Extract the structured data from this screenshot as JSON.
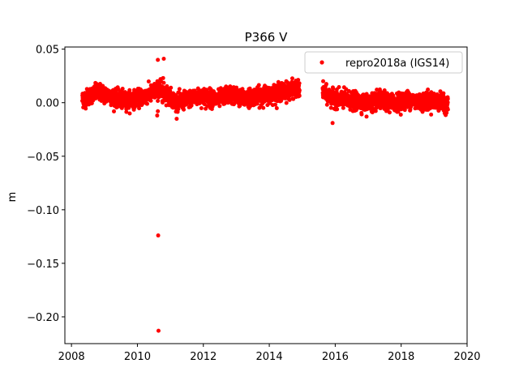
{
  "chart_data": {
    "type": "scatter",
    "title": "P366 V",
    "xlabel": "",
    "ylabel": "m",
    "xlim": [
      2007.8,
      2020.0
    ],
    "ylim": [
      -0.225,
      0.052
    ],
    "xticks": [
      "2008",
      "2010",
      "2012",
      "2014",
      "2016",
      "2018",
      "2020"
    ],
    "xtick_values": [
      2008,
      2010,
      2012,
      2014,
      2016,
      2018,
      2020
    ],
    "yticks": [
      "0.05",
      "0.00",
      "−0.05",
      "−0.10",
      "−0.15",
      "−0.20"
    ],
    "ytick_values": [
      0.05,
      0.0,
      -0.05,
      -0.1,
      -0.15,
      -0.2
    ],
    "legend": {
      "label": "repro2018a (IGS14)",
      "placement": "top-right"
    },
    "grid": false,
    "series": [
      {
        "name": "repro2018a (IGS14)",
        "color": "#ff0000",
        "x_start": 2008.33,
        "x_end": 2019.42,
        "gaps": [
          [
            2014.92,
            2015.62
          ]
        ],
        "trend_points": [
          [
            2008.33,
            0.003
          ],
          [
            2008.8,
            0.01
          ],
          [
            2009.2,
            0.006
          ],
          [
            2009.6,
            0.002
          ],
          [
            2010.0,
            0.004
          ],
          [
            2010.4,
            0.008
          ],
          [
            2010.6,
            0.012
          ],
          [
            2010.9,
            0.008
          ],
          [
            2011.2,
            0.0
          ],
          [
            2011.6,
            0.004
          ],
          [
            2012.0,
            0.006
          ],
          [
            2012.4,
            0.003
          ],
          [
            2012.8,
            0.008
          ],
          [
            2013.2,
            0.004
          ],
          [
            2013.6,
            0.006
          ],
          [
            2014.0,
            0.008
          ],
          [
            2014.4,
            0.01
          ],
          [
            2014.8,
            0.013
          ],
          [
            2015.62,
            0.01
          ],
          [
            2015.9,
            0.004
          ],
          [
            2016.3,
            0.003
          ],
          [
            2016.6,
            0.001
          ],
          [
            2017.0,
            0.0
          ],
          [
            2017.4,
            0.002
          ],
          [
            2017.8,
            0.0
          ],
          [
            2018.2,
            0.003
          ],
          [
            2018.6,
            0.001
          ],
          [
            2019.0,
            0.002
          ],
          [
            2019.42,
            -0.002
          ]
        ],
        "outliers": [
          [
            2010.62,
            0.04
          ],
          [
            2010.8,
            0.041
          ],
          [
            2010.63,
            -0.124
          ],
          [
            2010.64,
            -0.213
          ],
          [
            2010.6,
            -0.012
          ],
          [
            2010.62,
            -0.008
          ],
          [
            2015.92,
            -0.019
          ],
          [
            2016.95,
            -0.013
          ],
          [
            2010.7,
            0.022
          ],
          [
            2010.78,
            0.023
          ]
        ]
      }
    ]
  }
}
